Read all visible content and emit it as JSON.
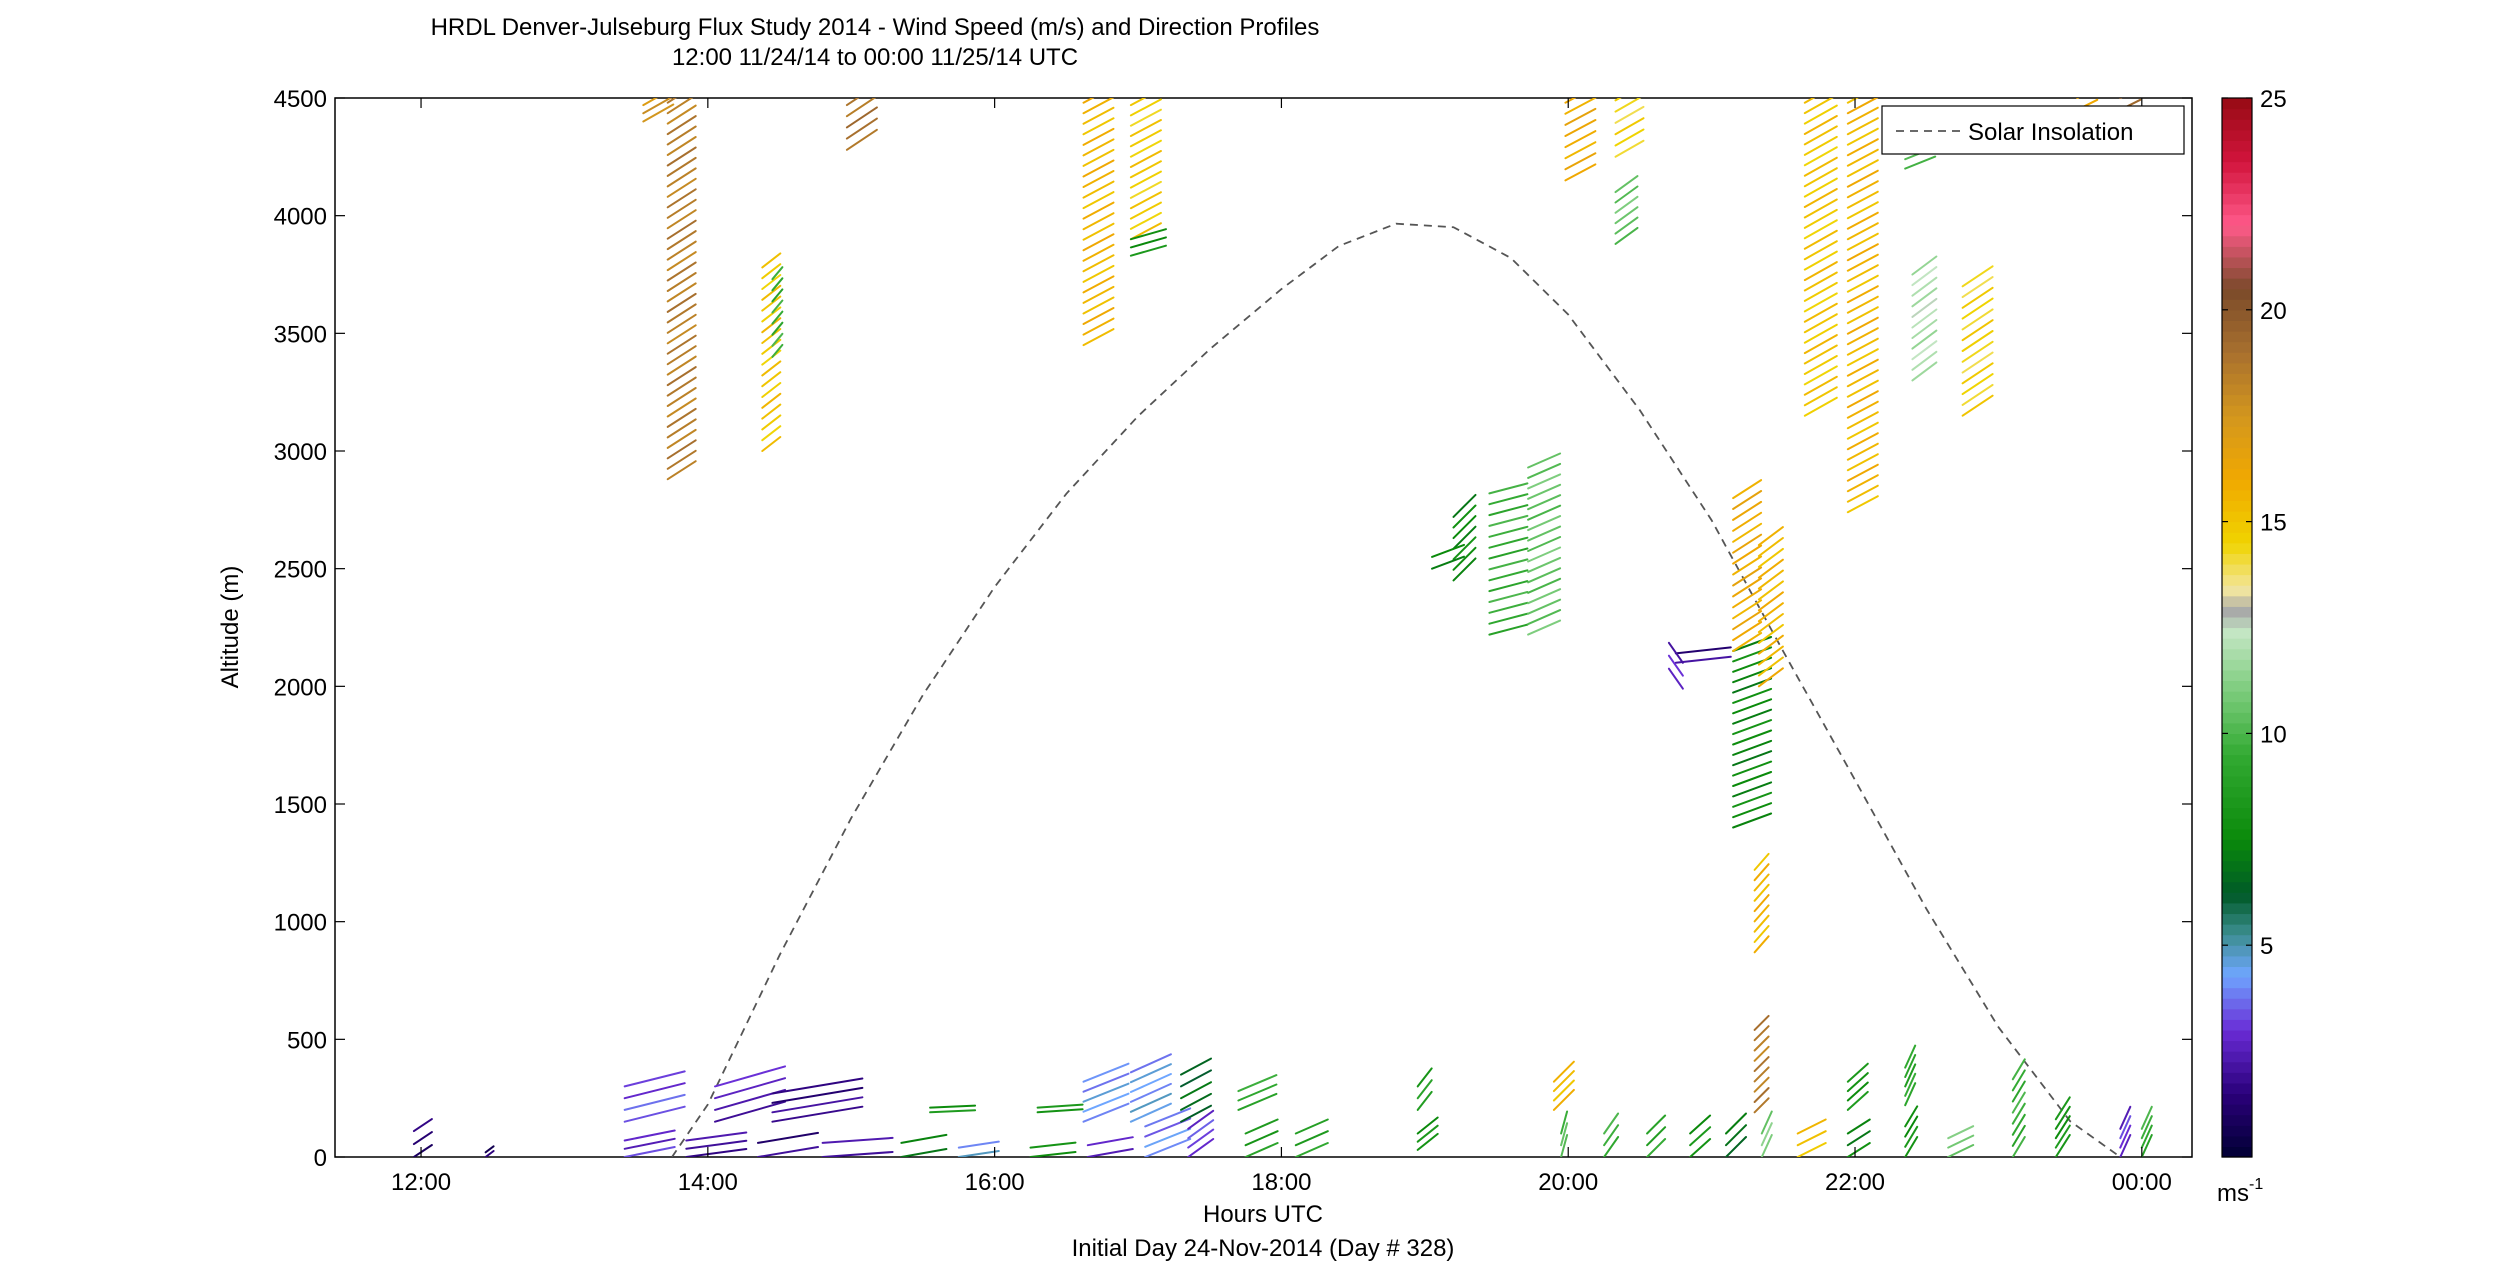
{
  "chart_data": {
    "type": "wind-barb-profile",
    "title": "HRDL Denver-Julseburg Flux Study 2014 - Wind Speed (m/s) and Direction Profiles",
    "subtitle": "12:00 11/24/14 to 00:00 11/25/14  UTC",
    "xlabel": "Hours UTC",
    "xlabel2": "Initial Day 24-Nov-2014 (Day # 328)",
    "ylabel": "Altitude (m)",
    "xlim": [
      11.4,
      24.35
    ],
    "ylim": [
      0,
      4500
    ],
    "x_ticks": [
      12,
      14,
      16,
      18,
      20,
      22,
      24
    ],
    "x_tick_labels": [
      "12:00",
      "14:00",
      "16:00",
      "18:00",
      "20:00",
      "22:00",
      "00:00"
    ],
    "y_ticks": [
      0,
      500,
      1000,
      1500,
      2000,
      2500,
      3000,
      3500,
      4000,
      4500
    ],
    "y_tick_labels": [
      "0",
      "500",
      "1000",
      "1500",
      "2000",
      "2500",
      "3000",
      "3500",
      "4000",
      "4500"
    ],
    "legend": {
      "entry": "Solar Insolation",
      "placement": "top-right",
      "line_style": "dashed",
      "color": "#555555"
    },
    "colorbar": {
      "min": 0,
      "max": 25,
      "ticks": [
        5,
        10,
        15,
        20,
        25
      ],
      "tick_labels": [
        "5",
        "10",
        "15",
        "20",
        "25"
      ],
      "unit_label": "ms",
      "unit_exponent": "-1",
      "stops": [
        {
          "v": 0,
          "c": "#000033"
        },
        {
          "v": 1.5,
          "c": "#2a007a"
        },
        {
          "v": 3,
          "c": "#6a2cd6"
        },
        {
          "v": 4.3,
          "c": "#6fa6ff"
        },
        {
          "v": 5.3,
          "c": "#3a8c8c"
        },
        {
          "v": 6.2,
          "c": "#005a28"
        },
        {
          "v": 7.5,
          "c": "#0a8a0a"
        },
        {
          "v": 9.5,
          "c": "#33aa33"
        },
        {
          "v": 11,
          "c": "#7ccc7c"
        },
        {
          "v": 12.4,
          "c": "#c4e6c4"
        },
        {
          "v": 12.9,
          "c": "#a8a8a8"
        },
        {
          "v": 13.4,
          "c": "#f2e6a0"
        },
        {
          "v": 14.5,
          "c": "#f0d400"
        },
        {
          "v": 16,
          "c": "#f0a800"
        },
        {
          "v": 17.5,
          "c": "#d2961e"
        },
        {
          "v": 19,
          "c": "#a8702e"
        },
        {
          "v": 20.5,
          "c": "#7a4a2a"
        },
        {
          "v": 22,
          "c": "#ff5a8a"
        },
        {
          "v": 23.5,
          "c": "#d2143c"
        },
        {
          "v": 25,
          "c": "#960a14"
        }
      ]
    },
    "solar_insolation": {
      "x": [
        13.75,
        14.0,
        14.5,
        15.0,
        15.5,
        16.0,
        16.5,
        17.0,
        17.5,
        18.0,
        18.4,
        18.8,
        19.2,
        19.6,
        20.0,
        20.5,
        21.0,
        21.5,
        22.0,
        22.5,
        23.0,
        23.5,
        23.85
      ],
      "y": [
        0,
        223,
        857,
        1440,
        1963,
        2422,
        2818,
        3148,
        3432,
        3688,
        3871,
        3966,
        3951,
        3820,
        3580,
        3173,
        2706,
        2148,
        1602,
        1052,
        552,
        152,
        0
      ]
    },
    "profiles": [
      {
        "t": 11.95,
        "a0": 0,
        "a1": 110,
        "spd": 1.5,
        "dx": 18,
        "dy": -12
      },
      {
        "t": 12.45,
        "a0": 0,
        "a1": 20,
        "spd": 1.0,
        "dx": 8,
        "dy": -6
      },
      {
        "t": 13.42,
        "a0": 0,
        "a1": 70,
        "spd": 3.0,
        "dx": 50,
        "dy": -10
      },
      {
        "t": 13.42,
        "a0": 150,
        "a1": 300,
        "spd": 3.2,
        "dx": 60,
        "dy": -15
      },
      {
        "t": 13.55,
        "a0": 4400,
        "a1": 4470,
        "spd": 17.5,
        "dx": 30,
        "dy": -17
      },
      {
        "t": 13.72,
        "a0": 2880,
        "a1": 4480,
        "spd": 18.5,
        "dx": 28,
        "dy": -18
      },
      {
        "t": 13.85,
        "a0": 0,
        "a1": 70,
        "spd": 2.0,
        "dx": 60,
        "dy": -8
      },
      {
        "t": 14.05,
        "a0": 150,
        "a1": 300,
        "spd": 2.5,
        "dx": 70,
        "dy": -20
      },
      {
        "t": 14.35,
        "a0": 0,
        "a1": 60,
        "spd": 1.5,
        "dx": 60,
        "dy": -10
      },
      {
        "t": 14.38,
        "a0": 3000,
        "a1": 3780,
        "spd": 15,
        "dx": 18,
        "dy": -14
      },
      {
        "t": 14.45,
        "a0": 3400,
        "a1": 3730,
        "spd": 9.5,
        "dx": 10,
        "dy": -12
      },
      {
        "t": 14.45,
        "a0": 150,
        "a1": 270,
        "spd": 1.8,
        "dx": 90,
        "dy": -15
      },
      {
        "t": 14.8,
        "a0": 0,
        "a1": 60,
        "spd": 2.2,
        "dx": 70,
        "dy": -5
      },
      {
        "t": 14.97,
        "a0": 4280,
        "a1": 4470,
        "spd": 19,
        "dx": 30,
        "dy": -20
      },
      {
        "t": 15.35,
        "a0": 0,
        "a1": 60,
        "spd": 7.5,
        "dx": 45,
        "dy": -8
      },
      {
        "t": 15.55,
        "a0": 190,
        "a1": 210,
        "spd": 8.0,
        "dx": 45,
        "dy": -2
      },
      {
        "t": 15.75,
        "a0": 0,
        "a1": 40,
        "spd": 4.5,
        "dx": 40,
        "dy": -6
      },
      {
        "t": 16.25,
        "a0": 0,
        "a1": 40,
        "spd": 7.5,
        "dx": 45,
        "dy": -5
      },
      {
        "t": 16.3,
        "a0": 190,
        "a1": 210,
        "spd": 8.0,
        "dx": 45,
        "dy": -3
      },
      {
        "t": 16.62,
        "a0": 3450,
        "a1": 4480,
        "spd": 15.5,
        "dx": 30,
        "dy": -16
      },
      {
        "t": 16.62,
        "a0": 150,
        "a1": 320,
        "spd": 4.3,
        "dx": 45,
        "dy": -18
      },
      {
        "t": 16.65,
        "a0": 0,
        "a1": 50,
        "spd": 3.0,
        "dx": 45,
        "dy": -8
      },
      {
        "t": 16.95,
        "a0": 3900,
        "a1": 4470,
        "spd": 14.8,
        "dx": 30,
        "dy": -16
      },
      {
        "t": 16.95,
        "a0": 3830,
        "a1": 3900,
        "spd": 8.0,
        "dx": 35,
        "dy": -10
      },
      {
        "t": 16.95,
        "a0": 150,
        "a1": 360,
        "spd": 4.3,
        "dx": 40,
        "dy": -18
      },
      {
        "t": 17.05,
        "a0": 0,
        "a1": 130,
        "spd": 4.0,
        "dx": 45,
        "dy": -18
      },
      {
        "t": 17.3,
        "a0": 150,
        "a1": 350,
        "spd": 6.5,
        "dx": 30,
        "dy": -16
      },
      {
        "t": 17.35,
        "a0": 0,
        "a1": 120,
        "spd": 3.2,
        "dx": 25,
        "dy": -18
      },
      {
        "t": 17.7,
        "a0": 200,
        "a1": 280,
        "spd": 9.5,
        "dx": 38,
        "dy": -16
      },
      {
        "t": 17.75,
        "a0": 0,
        "a1": 100,
        "spd": 8.5,
        "dx": 32,
        "dy": -14
      },
      {
        "t": 18.1,
        "a0": 0,
        "a1": 100,
        "spd": 9.0,
        "dx": 32,
        "dy": -14
      },
      {
        "t": 18.95,
        "a0": 200,
        "a1": 300,
        "spd": 8.5,
        "dx": 14,
        "dy": -18
      },
      {
        "t": 18.95,
        "a0": 30,
        "a1": 100,
        "spd": 8.0,
        "dx": 20,
        "dy": -16
      },
      {
        "t": 19.2,
        "a0": 2450,
        "a1": 2720,
        "spd": 7.5,
        "dx": 22,
        "dy": -22
      },
      {
        "t": 19.05,
        "a0": 2500,
        "a1": 2550,
        "spd": 7.5,
        "dx": 32,
        "dy": -12
      },
      {
        "t": 19.45,
        "a0": 2220,
        "a1": 2820,
        "spd": 9.5,
        "dx": 38,
        "dy": -10
      },
      {
        "t": 19.72,
        "a0": 2220,
        "a1": 2930,
        "spd": 10.5,
        "dx": 32,
        "dy": -14
      },
      {
        "t": 19.9,
        "a0": 200,
        "a1": 320,
        "spd": 15.5,
        "dx": 20,
        "dy": -20
      },
      {
        "t": 19.95,
        "a0": 0,
        "a1": 100,
        "spd": 10.0,
        "dx": 6,
        "dy": -22
      },
      {
        "t": 19.98,
        "a0": 4150,
        "a1": 4480,
        "spd": 16,
        "dx": 30,
        "dy": -16
      },
      {
        "t": 20.25,
        "a0": 0,
        "a1": 100,
        "spd": 9.5,
        "dx": 14,
        "dy": -20
      },
      {
        "t": 20.33,
        "a0": 4250,
        "a1": 4490,
        "spd": 14.5,
        "dx": 28,
        "dy": -16
      },
      {
        "t": 20.33,
        "a0": 3880,
        "a1": 4100,
        "spd": 10.5,
        "dx": 22,
        "dy": -16
      },
      {
        "t": 20.55,
        "a0": 0,
        "a1": 100,
        "spd": 9.0,
        "dx": 18,
        "dy": -18
      },
      {
        "t": 20.75,
        "a0": 2100,
        "a1": 2140,
        "spd": 1.8,
        "dx": 55,
        "dy": -6
      },
      {
        "t": 20.8,
        "a0": 1990,
        "a1": 2100,
        "spd": 2.5,
        "dx": -14,
        "dy": -20
      },
      {
        "t": 20.85,
        "a0": 0,
        "a1": 100,
        "spd": 8.0,
        "dx": 20,
        "dy": -18
      },
      {
        "t": 21.15,
        "a0": 1400,
        "a1": 2150,
        "spd": 7.5,
        "dx": 38,
        "dy": -14
      },
      {
        "t": 21.15,
        "a0": 2150,
        "a1": 2800,
        "spd": 16.0,
        "dx": 28,
        "dy": -18
      },
      {
        "t": 21.1,
        "a0": 0,
        "a1": 100,
        "spd": 7.0,
        "dx": 20,
        "dy": -20
      },
      {
        "t": 21.33,
        "a0": 2000,
        "a1": 2600,
        "spd": 15.5,
        "dx": 24,
        "dy": -18
      },
      {
        "t": 21.3,
        "a0": 870,
        "a1": 1220,
        "spd": 15.5,
        "dx": 14,
        "dy": -16
      },
      {
        "t": 21.3,
        "a0": 190,
        "a1": 540,
        "spd": 18.5,
        "dx": 14,
        "dy": -14
      },
      {
        "t": 21.35,
        "a0": 0,
        "a1": 100,
        "spd": 11.0,
        "dx": 10,
        "dy": -22
      },
      {
        "t": 21.6,
        "a0": 0,
        "a1": 100,
        "spd": 15.0,
        "dx": 28,
        "dy": -14
      },
      {
        "t": 21.65,
        "a0": 3150,
        "a1": 4480,
        "spd": 15.0,
        "dx": 32,
        "dy": -18
      },
      {
        "t": 21.95,
        "a0": 2740,
        "a1": 4480,
        "spd": 15.5,
        "dx": 30,
        "dy": -16
      },
      {
        "t": 21.95,
        "a0": 200,
        "a1": 320,
        "spd": 8.0,
        "dx": 20,
        "dy": -18
      },
      {
        "t": 21.95,
        "a0": 0,
        "a1": 100,
        "spd": 7.5,
        "dx": 22,
        "dy": -14
      },
      {
        "t": 22.35,
        "a0": 220,
        "a1": 380,
        "spd": 9.0,
        "dx": 10,
        "dy": -22
      },
      {
        "t": 22.35,
        "a0": 0,
        "a1": 130,
        "spd": 8.0,
        "dx": 12,
        "dy": -20
      },
      {
        "t": 22.35,
        "a0": 4200,
        "a1": 4280,
        "spd": 10.0,
        "dx": 30,
        "dy": -12
      },
      {
        "t": 22.4,
        "a0": 3300,
        "a1": 3750,
        "spd": 12.0,
        "dx": 24,
        "dy": -18
      },
      {
        "t": 22.65,
        "a0": 0,
        "a1": 80,
        "spd": 11.0,
        "dx": 25,
        "dy": -12
      },
      {
        "t": 22.75,
        "a0": 3150,
        "a1": 3700,
        "spd": 14.5,
        "dx": 30,
        "dy": -20
      },
      {
        "t": 23.1,
        "a0": 0,
        "a1": 330,
        "spd": 9.5,
        "dx": 12,
        "dy": -20
      },
      {
        "t": 23.4,
        "a0": 0,
        "a1": 160,
        "spd": 8.0,
        "dx": 14,
        "dy": -22
      },
      {
        "t": 23.55,
        "a0": 4450,
        "a1": 4500,
        "spd": 16.0,
        "dx": 20,
        "dy": -10
      },
      {
        "t": 23.85,
        "a0": 4450,
        "a1": 4500,
        "spd": 19.5,
        "dx": 20,
        "dy": -10
      },
      {
        "t": 23.85,
        "a0": 0,
        "a1": 120,
        "spd": 3.0,
        "dx": 10,
        "dy": -22
      },
      {
        "t": 24.0,
        "a0": 0,
        "a1": 120,
        "spd": 9.5,
        "dx": 10,
        "dy": -22
      }
    ]
  }
}
